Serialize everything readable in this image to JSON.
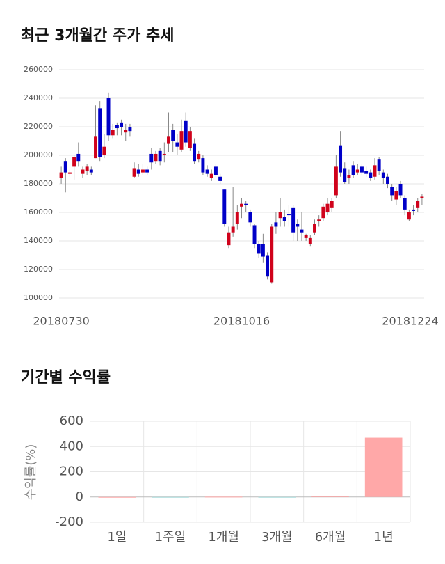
{
  "chart_data": [
    {
      "type": "candlestick",
      "title": "최근 3개월간 주가 추세",
      "categories": [
        "20180730",
        null,
        null,
        null,
        null,
        null,
        null,
        null,
        null,
        null,
        null,
        null,
        null,
        null,
        null,
        null,
        null,
        null,
        null,
        null,
        null,
        null,
        null,
        null,
        null,
        null,
        null,
        null,
        null,
        null,
        null,
        null,
        null,
        null,
        null,
        null,
        null,
        null,
        null,
        null,
        null,
        null,
        "20181016",
        null,
        null,
        null,
        null,
        null,
        null,
        null,
        null,
        null,
        null,
        null,
        null,
        null,
        null,
        null,
        null,
        null,
        null,
        null,
        null,
        null,
        null,
        null,
        null,
        null,
        null,
        null,
        null,
        null,
        null,
        null,
        null,
        null,
        null,
        null,
        null,
        null,
        null,
        null,
        null,
        null,
        "20181224"
      ],
      "open": [
        184000,
        196000,
        187000,
        192000,
        201000,
        187000,
        189000,
        190000,
        198000,
        233000,
        200000,
        240000,
        214000,
        221000,
        223000,
        216000,
        220000,
        185000,
        190000,
        188000,
        190000,
        201000,
        196000,
        203000,
        200000,
        208000,
        218000,
        209000,
        204000,
        224000,
        205000,
        208000,
        197000,
        198000,
        190000,
        184000,
        192000,
        185000,
        176000,
        137000,
        146000,
        152000,
        164000,
        166000,
        160000,
        151000,
        138000,
        138000,
        130000,
        111000,
        153000,
        156000,
        157000,
        159000,
        163000,
        152000,
        148000,
        142000,
        138000,
        146000,
        154000,
        156000,
        160000,
        163000,
        172000,
        207000,
        191000,
        184000,
        193000,
        188000,
        192000,
        189000,
        188000,
        185000,
        197000,
        188000,
        185000,
        178000,
        169000,
        180000,
        170000,
        155000,
        162000,
        163000,
        170000
      ],
      "high": [
        192000,
        198000,
        190000,
        200000,
        209000,
        192000,
        194000,
        192000,
        235000,
        238000,
        215000,
        244000,
        222000,
        223000,
        225000,
        222000,
        222000,
        195000,
        194000,
        194000,
        192000,
        205000,
        203000,
        205000,
        209000,
        230000,
        222000,
        215000,
        225000,
        230000,
        220000,
        212000,
        203000,
        200000,
        193000,
        190000,
        194000,
        187000,
        176000,
        150000,
        178000,
        165000,
        170000,
        168000,
        162000,
        152000,
        140000,
        145000,
        132000,
        152000,
        160000,
        170000,
        162000,
        165000,
        165000,
        155000,
        160000,
        145000,
        144000,
        155000,
        158000,
        166000,
        170000,
        170000,
        200000,
        217000,
        195000,
        190000,
        196000,
        194000,
        194000,
        192000,
        190000,
        198000,
        199000,
        190000,
        187000,
        180000,
        178000,
        182000,
        172000,
        162000,
        165000,
        170000,
        173000
      ],
      "low": [
        180000,
        174000,
        185000,
        183000,
        192000,
        184000,
        186000,
        186000,
        198000,
        196000,
        198000,
        210000,
        212000,
        214000,
        214000,
        210000,
        213000,
        184000,
        185000,
        186000,
        186000,
        190000,
        194000,
        193000,
        195000,
        202000,
        202000,
        200000,
        202000,
        206000,
        203000,
        194000,
        195000,
        186000,
        185000,
        182000,
        185000,
        180000,
        150000,
        135000,
        143000,
        148000,
        156000,
        160000,
        150000,
        135000,
        128000,
        125000,
        113000,
        110000,
        145000,
        150000,
        150000,
        150000,
        140000,
        140000,
        140000,
        140000,
        136000,
        144000,
        150000,
        154000,
        158000,
        160000,
        170000,
        185000,
        180000,
        180000,
        184000,
        186000,
        186000,
        185000,
        182000,
        183000,
        186000,
        180000,
        177000,
        168000,
        165000,
        170000,
        158000,
        154000,
        158000,
        160000,
        165000
      ],
      "close": [
        188000,
        188000,
        188000,
        199000,
        196000,
        190000,
        192000,
        188000,
        213000,
        199000,
        206000,
        214000,
        218000,
        219000,
        220000,
        218000,
        217000,
        191000,
        187000,
        190000,
        188000,
        195000,
        201000,
        196000,
        201000,
        213000,
        210000,
        206000,
        217000,
        209000,
        217000,
        196000,
        201000,
        188000,
        187000,
        187000,
        186000,
        182000,
        152000,
        146000,
        150000,
        160000,
        166000,
        165000,
        153000,
        138000,
        131000,
        129000,
        115000,
        150000,
        150000,
        160000,
        154000,
        158000,
        146000,
        150000,
        146000,
        144000,
        142000,
        152000,
        155000,
        164000,
        166000,
        168000,
        192000,
        188000,
        181000,
        186000,
        186000,
        190000,
        188000,
        187000,
        184000,
        193000,
        189000,
        184000,
        180000,
        172000,
        175000,
        172000,
        162000,
        160000,
        161000,
        168000,
        171000
      ],
      "up_color": "#d0021b",
      "down_color": "#0000c8",
      "ylim": [
        100000,
        260000
      ],
      "yticks": [
        100000,
        120000,
        140000,
        160000,
        180000,
        200000,
        220000,
        240000,
        260000
      ],
      "grid": true
    },
    {
      "type": "bar",
      "title": "기간별 수익률",
      "y_label": "수익률(%)",
      "categories": [
        "1일",
        "1주일",
        "1개월",
        "3개월",
        "6개월",
        "1년"
      ],
      "values": [
        0,
        -1,
        2,
        -5,
        6,
        470
      ],
      "colors": [
        "#ffa8a8",
        "#a8dcdc",
        "#ffa8a8",
        "#a8dcdc",
        "#ffa8a8",
        "#ffa8a8"
      ],
      "ylim": [
        -200,
        600
      ],
      "yticks": [
        -200,
        0,
        200,
        400,
        600
      ],
      "grid": true
    }
  ]
}
